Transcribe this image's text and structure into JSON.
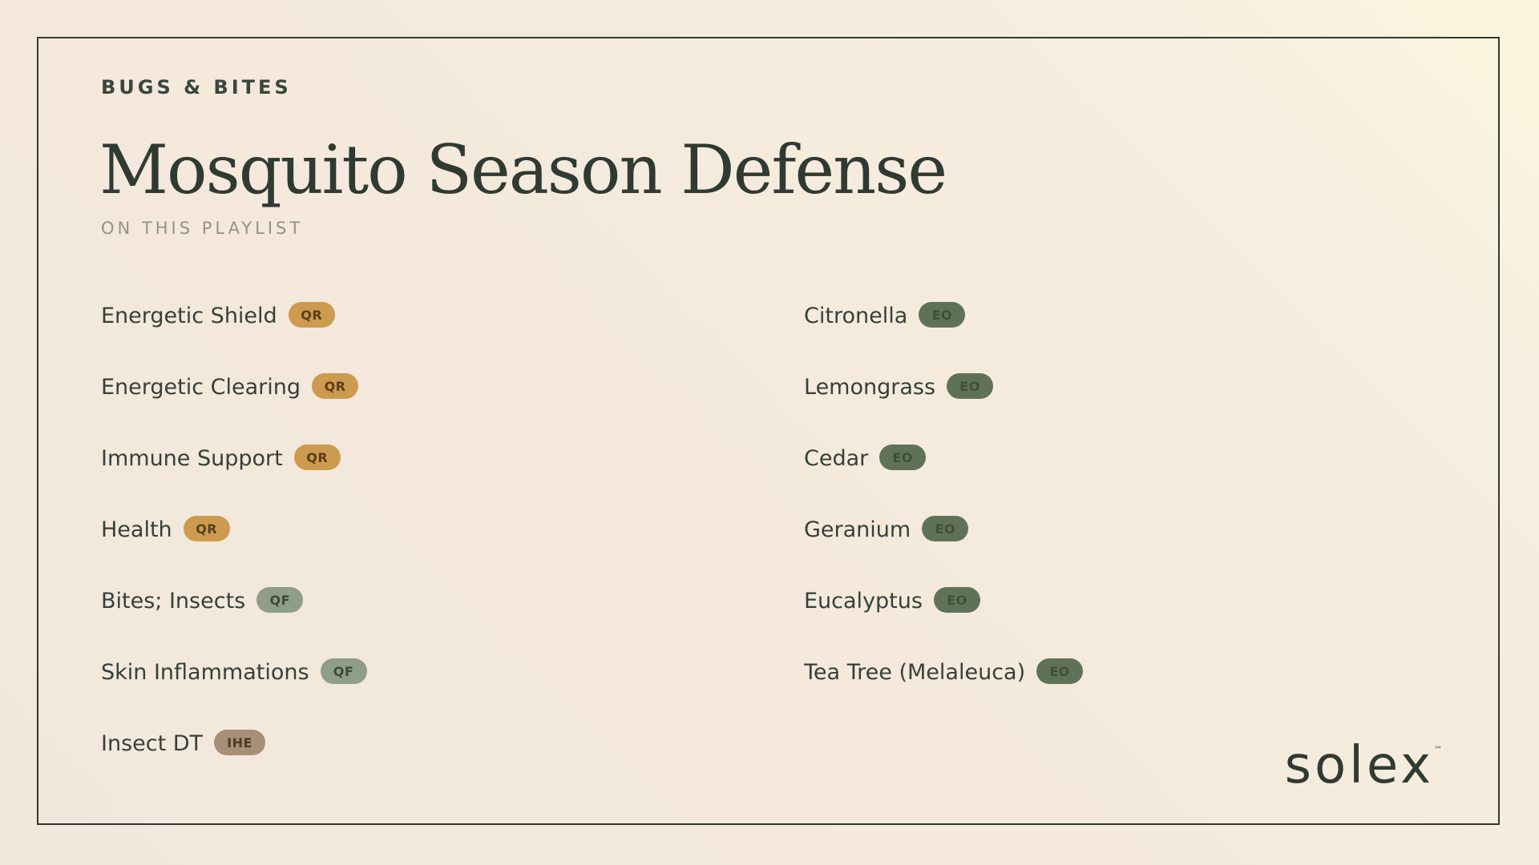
{
  "header": {
    "eyebrow": "BUGS & BITES",
    "title": "Mosquito Season Defense",
    "subtitle": "ON THIS PLAYLIST"
  },
  "left_items": [
    {
      "label": "Energetic Shield",
      "tag": "QR"
    },
    {
      "label": "Energetic Clearing",
      "tag": "QR"
    },
    {
      "label": "Immune Support",
      "tag": "QR"
    },
    {
      "label": "Health",
      "tag": "QR"
    },
    {
      "label": "Bites; Insects",
      "tag": "QF"
    },
    {
      "label": "Skin Inflammations",
      "tag": "QF"
    },
    {
      "label": "Insect DT",
      "tag": "IHE"
    }
  ],
  "right_items": [
    {
      "label": "Citronella",
      "tag": "EO"
    },
    {
      "label": "Lemongrass",
      "tag": "EO"
    },
    {
      "label": "Cedar",
      "tag": "EO"
    },
    {
      "label": "Geranium",
      "tag": "EO"
    },
    {
      "label": "Eucalyptus",
      "tag": "EO"
    },
    {
      "label": "Tea Tree (Melaleuca)",
      "tag": "EO"
    }
  ],
  "brand": {
    "name": "solex",
    "mark": "™"
  },
  "colors": {
    "QR": "#cd9b4f",
    "QF": "#8f9e86",
    "IHE": "#a98f75",
    "EO": "#5f7258",
    "text": "#2f3a32"
  }
}
